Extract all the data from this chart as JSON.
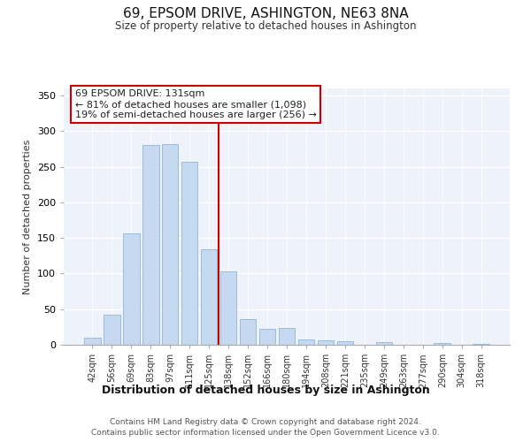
{
  "title": "69, EPSOM DRIVE, ASHINGTON, NE63 8NA",
  "subtitle": "Size of property relative to detached houses in Ashington",
  "xlabel": "Distribution of detached houses by size in Ashington",
  "ylabel": "Number of detached properties",
  "bar_labels": [
    "42sqm",
    "56sqm",
    "69sqm",
    "83sqm",
    "97sqm",
    "111sqm",
    "125sqm",
    "138sqm",
    "152sqm",
    "166sqm",
    "180sqm",
    "194sqm",
    "208sqm",
    "221sqm",
    "235sqm",
    "249sqm",
    "263sqm",
    "277sqm",
    "290sqm",
    "304sqm",
    "318sqm"
  ],
  "bar_values": [
    10,
    42,
    157,
    280,
    282,
    257,
    134,
    103,
    36,
    22,
    23,
    7,
    6,
    5,
    0,
    4,
    0,
    0,
    2,
    0,
    1
  ],
  "bar_color": "#c5d9f1",
  "bar_edge_color": "#8fb4d9",
  "vline_x_index": 6.5,
  "vline_color": "#cc0000",
  "annotation_line1": "69 EPSOM DRIVE: 131sqm",
  "annotation_line2": "← 81% of detached houses are smaller (1,098)",
  "annotation_line3": "19% of semi-detached houses are larger (256) →",
  "annotation_box_color": "#ffffff",
  "annotation_box_edge": "#cc0000",
  "ylim": [
    0,
    360
  ],
  "yticks": [
    0,
    50,
    100,
    150,
    200,
    250,
    300,
    350
  ],
  "footer1": "Contains HM Land Registry data © Crown copyright and database right 2024.",
  "footer2": "Contains public sector information licensed under the Open Government Licence v3.0.",
  "bg_color": "#ffffff",
  "plot_bg_color": "#eef2fa"
}
